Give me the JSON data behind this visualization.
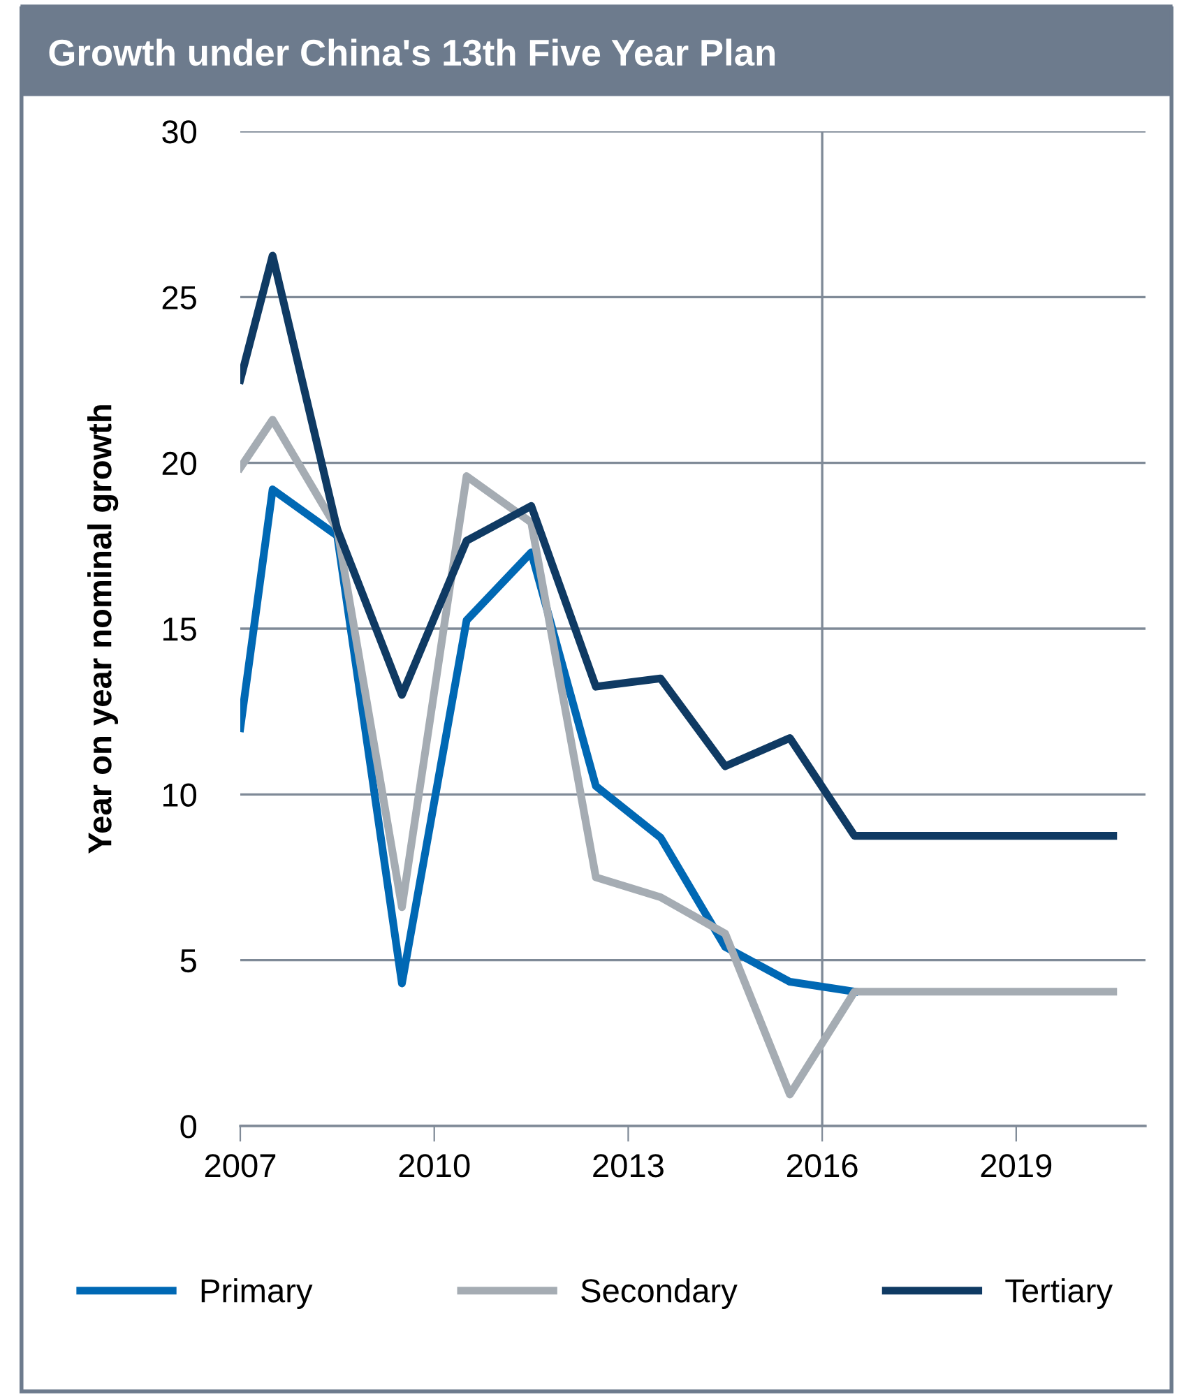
{
  "chart_data": {
    "type": "line",
    "title": "Growth under China's 13th Five Year Plan",
    "ylabel": "Year on year nominal growth",
    "xlim": [
      2007,
      2021
    ],
    "xticks": [
      2007,
      2010,
      2013,
      2016,
      2019
    ],
    "ylim": [
      0,
      30
    ],
    "yticks": [
      0,
      5,
      10,
      15,
      20,
      25,
      30
    ],
    "x": [
      2007,
      2007.5,
      2008.5,
      2009.5,
      2010.5,
      2011.5,
      2012.5,
      2013.5,
      2014.5,
      2015.5,
      2016.5,
      2020.5
    ],
    "series": [
      {
        "name": "Primary",
        "color": "#0068b4",
        "values": [
          12.0,
          19.2,
          17.8,
          4.3,
          15.25,
          17.3,
          10.25,
          8.7,
          5.4,
          4.35,
          4.05,
          null
        ]
      },
      {
        "name": "Secondary",
        "color": "#a5acb3",
        "values": [
          19.85,
          21.3,
          18.0,
          6.6,
          19.6,
          18.2,
          7.5,
          6.9,
          5.8,
          0.95,
          4.05,
          4.05
        ]
      },
      {
        "name": "Tertiary",
        "color": "#0f3a63",
        "values": [
          22.5,
          26.25,
          18.0,
          13.0,
          17.65,
          18.7,
          13.25,
          13.5,
          10.85,
          11.7,
          8.75,
          8.75
        ]
      }
    ],
    "ref_lines": [
      {
        "axis": "x",
        "value": 2016,
        "color": "#7f8a97"
      }
    ],
    "grid": "y",
    "legend": "bottom",
    "marker": "none",
    "line_style": "solid"
  }
}
